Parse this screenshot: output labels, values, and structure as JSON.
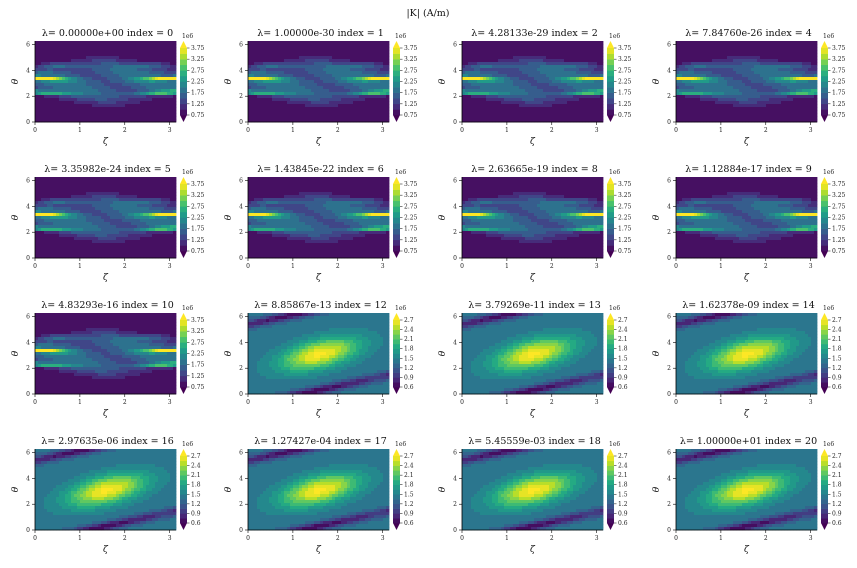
{
  "chart_data": {
    "type": "heatmap",
    "subtype": "filled-contour grid",
    "suptitle": "|K| (A/m)",
    "xlabel": "ζ",
    "ylabel": "θ",
    "xlim": [
      0,
      3.14159
    ],
    "ylim": [
      0,
      6.28318
    ],
    "xticks": [
      "0",
      "1",
      "2",
      "3"
    ],
    "yticks": [
      "0",
      "2",
      "4",
      "6"
    ],
    "colormap": "viridis",
    "colorbar_offset": "1e6",
    "colorbar_extend": "both",
    "colorbars": {
      "A": {
        "ticks": [
          "0.75",
          "1.25",
          "1.75",
          "2.25",
          "2.75",
          "3.25",
          "3.75"
        ],
        "range": [
          0.75,
          3.75
        ]
      },
      "B": {
        "ticks": [
          "0.6",
          "0.9",
          "1.2",
          "1.5",
          "1.8",
          "2.1",
          "2.4",
          "2.7"
        ],
        "range": [
          0.6,
          2.7
        ]
      }
    },
    "panels": [
      {
        "title": "λ=  0.00000e+00 index = 0",
        "pattern": "A"
      },
      {
        "title": "λ=  1.00000e-30 index = 1",
        "pattern": "A"
      },
      {
        "title": "λ=  4.28133e-29 index = 2",
        "pattern": "A"
      },
      {
        "title": "λ=  7.84760e-26 index = 4",
        "pattern": "A"
      },
      {
        "title": "λ=  3.35982e-24 index = 5",
        "pattern": "A"
      },
      {
        "title": "λ=  1.43845e-22 index = 6",
        "pattern": "A"
      },
      {
        "title": "λ=  2.63665e-19 index = 8",
        "pattern": "A"
      },
      {
        "title": "λ=  1.12884e-17 index = 9",
        "pattern": "A"
      },
      {
        "title": "λ=  4.83293e-16 index = 10",
        "pattern": "A"
      },
      {
        "title": "λ=  8.85867e-13 index = 12",
        "pattern": "B"
      },
      {
        "title": "λ=  3.79269e-11 index = 13",
        "pattern": "B"
      },
      {
        "title": "λ=  1.62378e-09 index = 14",
        "pattern": "B"
      },
      {
        "title": "λ=  2.97635e-06 index = 16",
        "pattern": "B"
      },
      {
        "title": "λ=  1.27427e-04 index = 17",
        "pattern": "B"
      },
      {
        "title": "λ=  5.45559e-03 index = 18",
        "pattern": "B"
      },
      {
        "title": "λ=  1.00000e+01 index = 20",
        "pattern": "B"
      }
    ]
  }
}
